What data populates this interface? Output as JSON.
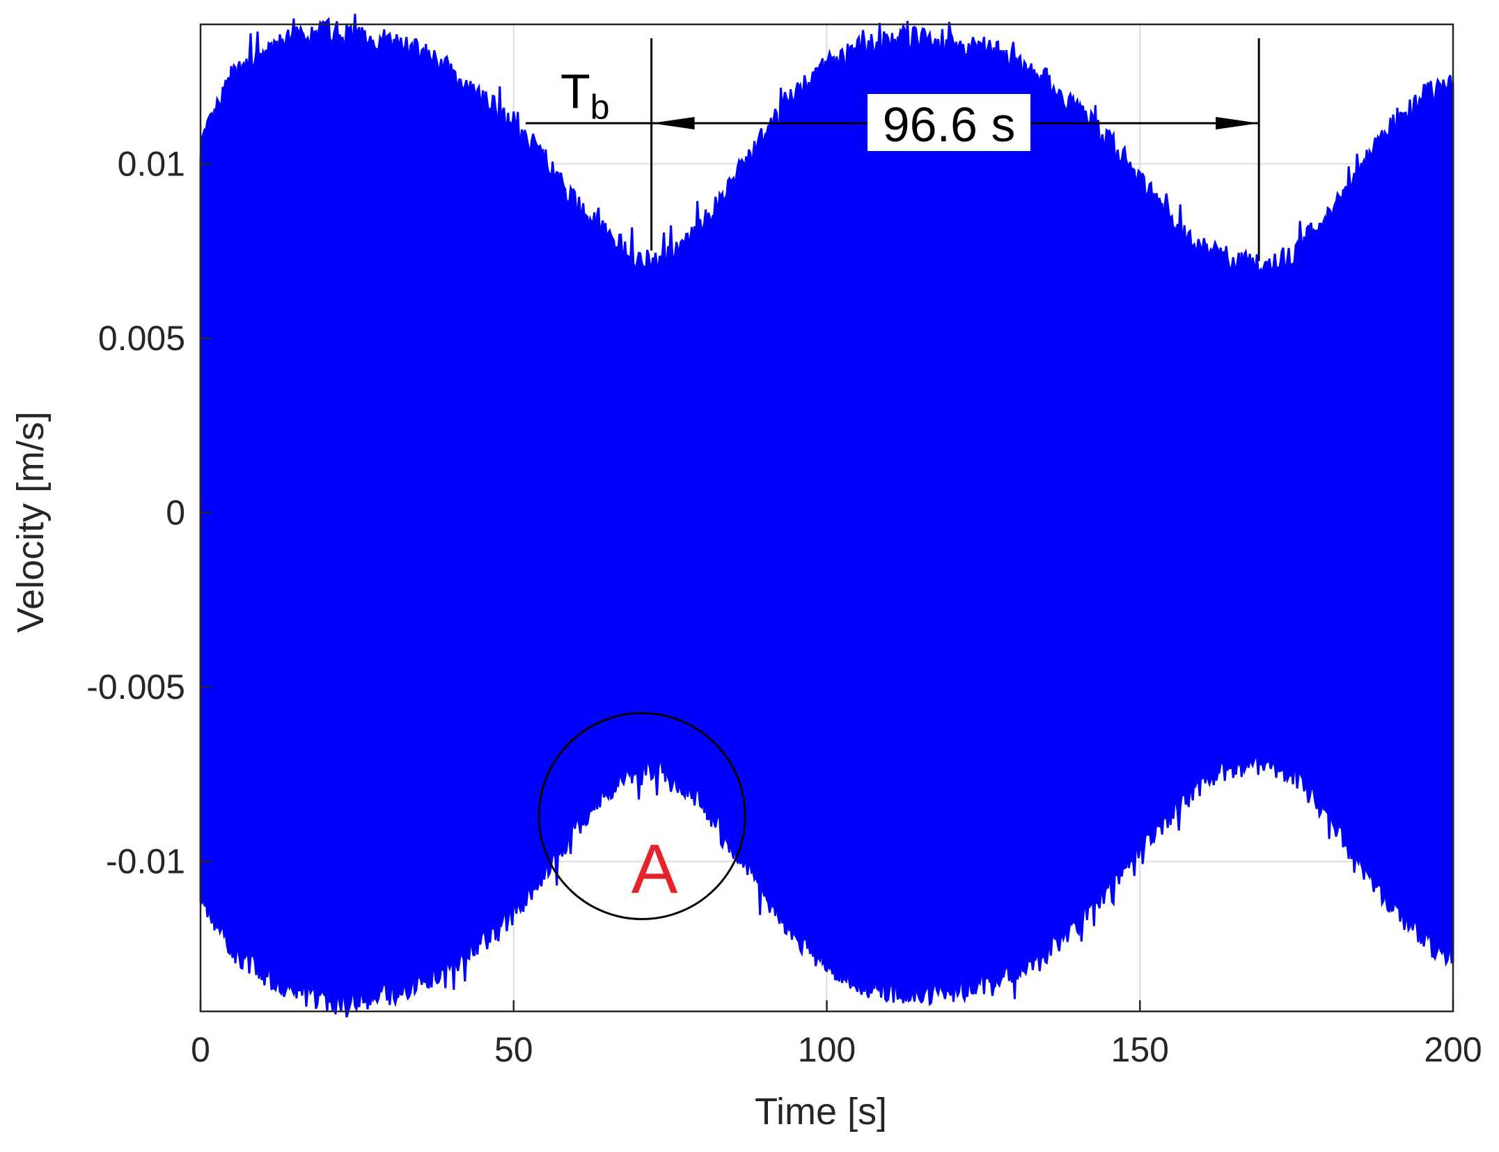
{
  "chart_data": {
    "type": "line",
    "xlabel": "Time [s]",
    "ylabel": "Velocity [m/s]",
    "xlim": [
      0,
      200
    ],
    "ylim": [
      -0.0143,
      0.014
    ],
    "xticks": [
      0,
      50,
      100,
      150,
      200
    ],
    "xtick_labels": [
      "0",
      "50",
      "100",
      "150",
      "200"
    ],
    "yticks": [
      -0.01,
      -0.005,
      0,
      0.005,
      0.01
    ],
    "ytick_labels": [
      "-0.01",
      "-0.005",
      "0",
      "0.005",
      "0.01"
    ],
    "grid": true,
    "series": [
      {
        "color": "#0000ff",
        "envelope": {
          "t": [
            0,
            5,
            10,
            15,
            20,
            25,
            30,
            35,
            40,
            45,
            50,
            55,
            60,
            65,
            70,
            72,
            75,
            80,
            85,
            90,
            95,
            100,
            105,
            110,
            115,
            120,
            125,
            130,
            135,
            140,
            145,
            150,
            155,
            160,
            165,
            169,
            172,
            175,
            180,
            185,
            190,
            195,
            200
          ],
          "upper": [
            0.0105,
            0.0125,
            0.0132,
            0.0136,
            0.0138,
            0.0137,
            0.0135,
            0.0132,
            0.0127,
            0.012,
            0.0112,
            0.0101,
            0.0088,
            0.0079,
            0.0073,
            0.0072,
            0.0074,
            0.0082,
            0.0095,
            0.0108,
            0.012,
            0.0128,
            0.0133,
            0.0135,
            0.0136,
            0.0135,
            0.0133,
            0.013,
            0.0124,
            0.0116,
            0.0107,
            0.0096,
            0.0084,
            0.0076,
            0.0072,
            0.0071,
            0.0072,
            0.0075,
            0.0085,
            0.0098,
            0.011,
            0.0119,
            0.0124
          ],
          "lower": [
            -0.011,
            -0.0125,
            -0.0132,
            -0.0137,
            -0.014,
            -0.014,
            -0.0138,
            -0.0135,
            -0.013,
            -0.0123,
            -0.0115,
            -0.0103,
            -0.009,
            -0.008,
            -0.0074,
            -0.0073,
            -0.0075,
            -0.0083,
            -0.0096,
            -0.011,
            -0.0121,
            -0.013,
            -0.0135,
            -0.0137,
            -0.0138,
            -0.0137,
            -0.0135,
            -0.0132,
            -0.0126,
            -0.0118,
            -0.0108,
            -0.0097,
            -0.0086,
            -0.0077,
            -0.0073,
            -0.0072,
            -0.0073,
            -0.0076,
            -0.0086,
            -0.01,
            -0.0112,
            -0.0122,
            -0.0128
          ]
        }
      }
    ],
    "annotations": {
      "tb_symbol": "T",
      "tb_subscript": "b",
      "beat_period_label": "96.6 s",
      "beat_markers_x": [
        72,
        169
      ],
      "region_label": "A",
      "region_label_color": "#e8222a",
      "region_center": [
        70.5,
        -0.0087
      ]
    }
  }
}
